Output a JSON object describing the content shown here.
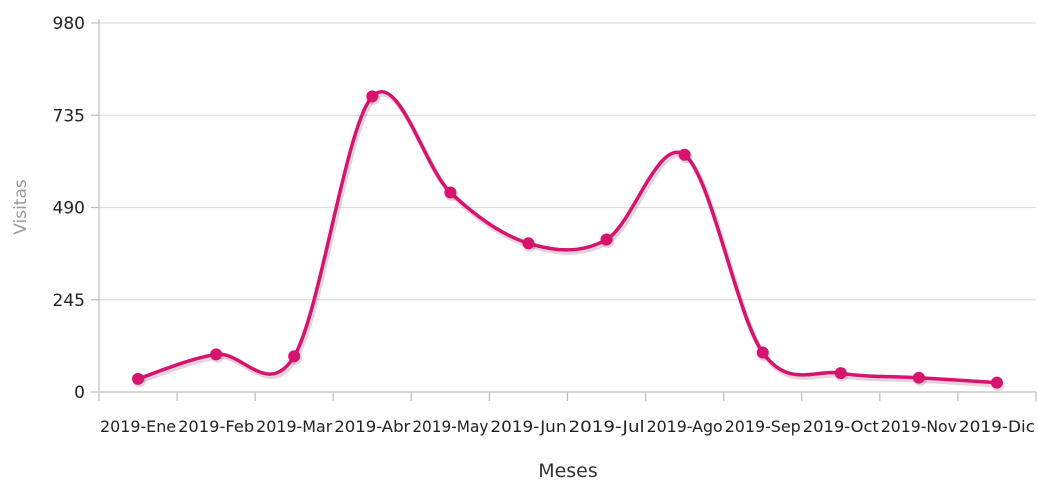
{
  "chart_data": {
    "type": "line",
    "smooth": true,
    "title": "",
    "xlabel": "Meses",
    "ylabel": "Visitas",
    "categories": [
      "2019-Ene",
      "2019-Feb",
      "2019-Mar",
      "2019-Abr",
      "2019-May",
      "2019-Jun",
      "2019-Jul",
      "2019-Ago",
      "2019-Sep",
      "2019-Oct",
      "2019-Nov",
      "2019-Dic"
    ],
    "yticks": [
      0,
      245,
      490,
      735,
      980
    ],
    "ylim": [
      0,
      980
    ],
    "grid": "horizontal",
    "legend": "none",
    "series": [
      {
        "color": "#d6146f",
        "values": [
          35,
          100,
          95,
          785,
          530,
          395,
          405,
          630,
          105,
          50,
          38,
          25
        ]
      }
    ]
  }
}
